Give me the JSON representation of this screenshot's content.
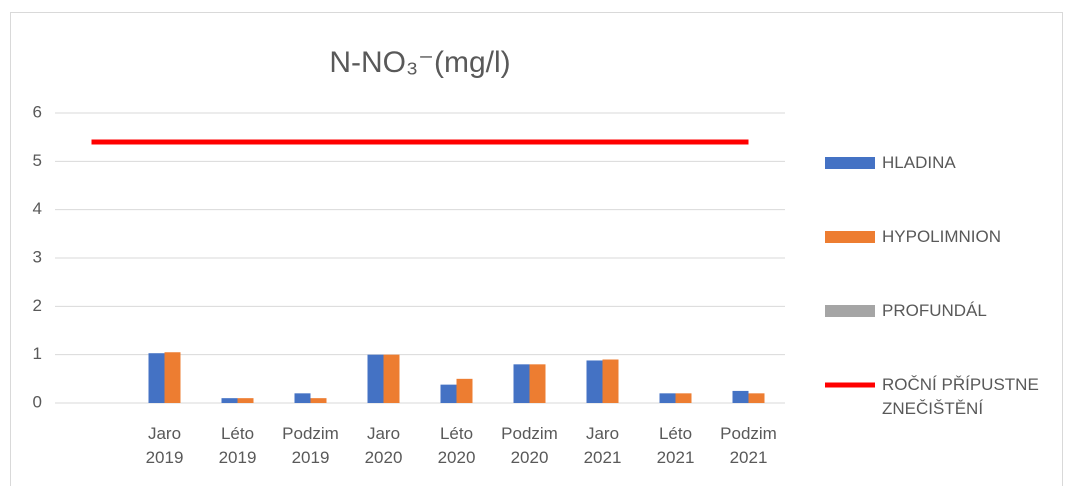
{
  "chart_data": {
    "type": "bar",
    "title": "N-NO₃⁻(mg/l)",
    "categories": [
      null,
      "Jaro 2019",
      "Léto 2019",
      "Podzim 2019",
      "Jaro 2020",
      "Léto 2020",
      "Podzim 2020",
      "Jaro 2021",
      "Léto 2021",
      "Podzim 2021"
    ],
    "series": [
      {
        "name": "HLADINA",
        "color": "#4472c4",
        "type": "bar",
        "values": [
          null,
          1.03,
          0.1,
          0.2,
          1.0,
          0.38,
          0.8,
          0.88,
          0.2,
          0.25
        ]
      },
      {
        "name": "HYPOLIMNION",
        "color": "#ed7d31",
        "type": "bar",
        "values": [
          null,
          1.05,
          0.1,
          0.1,
          1.0,
          0.5,
          0.8,
          0.9,
          0.2,
          0.2
        ]
      },
      {
        "name": "PROFUNDÁL",
        "color": "#a5a5a5",
        "type": "bar",
        "values": [
          null,
          null,
          null,
          null,
          null,
          null,
          null,
          null,
          null,
          null
        ]
      },
      {
        "name": "ROČNÍ PŘÍPUSTNE ZNEČIŠTĚNÍ",
        "color": "#ff0000",
        "type": "line",
        "values": [
          5.4,
          5.4,
          5.4,
          5.4,
          5.4,
          5.4,
          5.4,
          5.4,
          5.4,
          5.4
        ]
      }
    ],
    "ylim": [
      0,
      6
    ],
    "yticks": [
      0,
      1,
      2,
      3,
      4,
      5,
      6
    ],
    "grid": true,
    "legend": "right"
  }
}
